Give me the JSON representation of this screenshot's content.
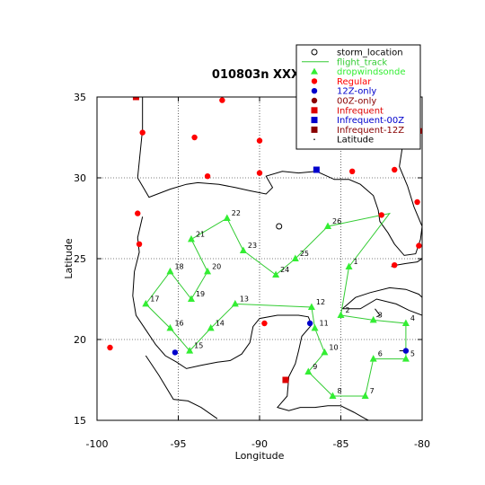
{
  "title": "010803n XXXX",
  "chart_data": {
    "type": "scatter",
    "xlabel": "Longitude",
    "ylabel": "Latitude",
    "xlim": [
      -100,
      -80
    ],
    "ylim": [
      15,
      35
    ],
    "x_ticks": [
      -100,
      -95,
      -90,
      -85,
      -80
    ],
    "y_ticks": [
      15,
      20,
      25,
      30,
      35
    ],
    "x_tick_labels": [
      "-100",
      "-95",
      "-90",
      "-85",
      "-80"
    ],
    "y_tick_labels": [
      "15",
      "20",
      "25",
      "30",
      "35"
    ],
    "grid": true,
    "legend_position": "top-right",
    "legend": [
      {
        "label": "storm_location",
        "marker": "open-circle",
        "color": "#000000"
      },
      {
        "label": "flight_track",
        "marker": "line",
        "color": "#33cc33"
      },
      {
        "label": "dropwindsonde",
        "marker": "triangle",
        "color": "#33ee33"
      },
      {
        "label": "Regular",
        "marker": "circle",
        "color": "#ff0000"
      },
      {
        "label": "12Z-only",
        "marker": "circle",
        "color": "#0000cc"
      },
      {
        "label": "00Z-only",
        "marker": "circle",
        "color": "#880000"
      },
      {
        "label": "Infrequent",
        "marker": "square",
        "color": "#dd0000"
      },
      {
        "label": "Infrequent-00Z",
        "marker": "square",
        "color": "#0000cc"
      },
      {
        "label": "Infrequent-12Z",
        "marker": "square",
        "color": "#880000"
      },
      {
        "label": "Latitude",
        "marker": "dot",
        "color": "#000000"
      }
    ],
    "storm_location": [
      {
        "lon": -88.8,
        "lat": 27.0
      }
    ],
    "dropwindsondes": [
      {
        "label": "1",
        "lon": -84.5,
        "lat": 24.5
      },
      {
        "label": "2",
        "lon": -85.0,
        "lat": 21.5
      },
      {
        "label": "3",
        "lon": -83.0,
        "lat": 21.2
      },
      {
        "label": "4",
        "lon": -81.0,
        "lat": 21.0
      },
      {
        "label": "5",
        "lon": -81.0,
        "lat": 18.8
      },
      {
        "label": "6",
        "lon": -83.0,
        "lat": 18.8
      },
      {
        "label": "7",
        "lon": -83.5,
        "lat": 16.5
      },
      {
        "label": "8",
        "lon": -85.5,
        "lat": 16.5
      },
      {
        "label": "9",
        "lon": -87.0,
        "lat": 18.0
      },
      {
        "label": "10",
        "lon": -86.0,
        "lat": 19.2
      },
      {
        "label": "11",
        "lon": -86.6,
        "lat": 20.7
      },
      {
        "label": "12",
        "lon": -86.8,
        "lat": 22.0
      },
      {
        "label": "13",
        "lon": -91.5,
        "lat": 22.2
      },
      {
        "label": "14",
        "lon": -93.0,
        "lat": 20.7
      },
      {
        "label": "15",
        "lon": -94.3,
        "lat": 19.3
      },
      {
        "label": "16",
        "lon": -95.5,
        "lat": 20.7
      },
      {
        "label": "17",
        "lon": -97.0,
        "lat": 22.2
      },
      {
        "label": "18",
        "lon": -95.5,
        "lat": 24.2
      },
      {
        "label": "19",
        "lon": -94.2,
        "lat": 22.5
      },
      {
        "label": "20",
        "lon": -93.2,
        "lat": 24.2
      },
      {
        "label": "21",
        "lon": -94.2,
        "lat": 26.2
      },
      {
        "label": "22",
        "lon": -92.0,
        "lat": 27.5
      },
      {
        "label": "23",
        "lon": -91.0,
        "lat": 25.5
      },
      {
        "label": "24",
        "lon": -89.0,
        "lat": 24.0
      },
      {
        "label": "25",
        "lon": -87.8,
        "lat": 25.0
      },
      {
        "label": "26",
        "lon": -85.8,
        "lat": 27.0
      }
    ],
    "flight_track_extra_points": [
      {
        "lon": -82.0,
        "lat": 27.8
      },
      {
        "lon": -84.5,
        "lat": 24.5
      }
    ],
    "stations": {
      "regular": [
        [
          -97.8,
          35.8
        ],
        [
          -92.3,
          34.8
        ],
        [
          -97.2,
          32.8
        ],
        [
          -94.0,
          32.5
        ],
        [
          -90.0,
          32.3
        ],
        [
          -93.2,
          30.1
        ],
        [
          -90.0,
          30.3
        ],
        [
          -84.3,
          30.4
        ],
        [
          -81.7,
          30.5
        ],
        [
          -80.1,
          32.9
        ],
        [
          -97.5,
          27.8
        ],
        [
          -97.4,
          25.9
        ],
        [
          -82.5,
          27.7
        ],
        [
          -80.3,
          28.5
        ],
        [
          -80.2,
          25.8
        ],
        [
          -81.7,
          24.6
        ],
        [
          -89.7,
          21.0
        ],
        [
          -99.2,
          19.5
        ]
      ],
      "twelve_z_only": [
        [
          -95.2,
          19.2
        ],
        [
          -81.0,
          19.3
        ],
        [
          -86.9,
          21.0
        ]
      ],
      "infrequent": [
        [
          -97.6,
          35.0
        ],
        [
          -88.4,
          17.5
        ]
      ],
      "infrequent_00z": [
        [
          -86.5,
          30.5
        ]
      ]
    }
  }
}
